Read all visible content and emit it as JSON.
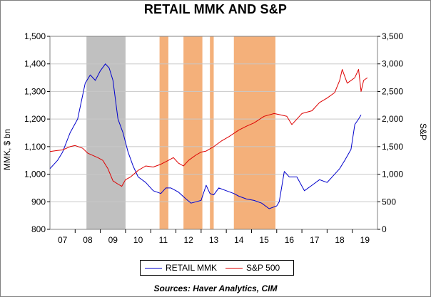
{
  "chart_data": {
    "type": "line",
    "title": "RETAIL MMK AND S&P",
    "ylabel_left": "MMK, $ bn",
    "ylabel_right": "S&P",
    "source": "Sources:  Haver Analytics, CIM",
    "x_ticks": [
      "07",
      "08",
      "09",
      "10",
      "11",
      "12",
      "13",
      "14",
      "15",
      "16",
      "17",
      "18",
      "19"
    ],
    "xlim": [
      2006.5,
      2019.5
    ],
    "ylim_left": [
      800,
      1500
    ],
    "yticks_left": [
      "800",
      "900",
      "1,000",
      "1,100",
      "1,200",
      "1,300",
      "1,400",
      "1,500"
    ],
    "ylim_right": [
      0,
      3500
    ],
    "yticks_right": [
      "0",
      "500",
      "1,000",
      "1,500",
      "2,000",
      "2,500",
      "3,000",
      "3,500"
    ],
    "grid": "horizontal",
    "legend_position": "bottom",
    "colors": {
      "mmk": "#0000cc",
      "sp500": "#dd0000",
      "recession": "#c0c0c0",
      "tightening": "#f4b07a"
    },
    "shaded_periods": [
      {
        "type": "recession",
        "start": 2007.95,
        "end": 2009.5
      },
      {
        "type": "tightening",
        "start": 2010.85,
        "end": 2011.2
      },
      {
        "type": "tightening",
        "start": 2011.8,
        "end": 2012.55
      },
      {
        "type": "tightening",
        "start": 2012.85,
        "end": 2013.0
      },
      {
        "type": "tightening",
        "start": 2013.8,
        "end": 2015.45
      }
    ],
    "series": [
      {
        "name": "RETAIL MMK",
        "axis": "left",
        "x": [
          2006.5,
          2006.8,
          2007.0,
          2007.3,
          2007.6,
          2007.9,
          2008.1,
          2008.3,
          2008.5,
          2008.7,
          2008.85,
          2009.0,
          2009.2,
          2009.4,
          2009.6,
          2009.8,
          2010.0,
          2010.3,
          2010.6,
          2010.9,
          2011.1,
          2011.3,
          2011.6,
          2011.9,
          2012.1,
          2012.3,
          2012.5,
          2012.7,
          2012.85,
          2013.0,
          2013.2,
          2013.5,
          2013.8,
          2014.0,
          2014.3,
          2014.6,
          2014.9,
          2015.2,
          2015.5,
          2015.6,
          2015.8,
          2016.0,
          2016.3,
          2016.6,
          2016.9,
          2017.2,
          2017.5,
          2017.8,
          2018.0,
          2018.2,
          2018.45,
          2018.6,
          2018.75,
          2018.85
        ],
        "values": [
          1020,
          1050,
          1080,
          1150,
          1200,
          1330,
          1360,
          1340,
          1375,
          1400,
          1385,
          1340,
          1200,
          1150,
          1080,
          1030,
          990,
          970,
          940,
          930,
          950,
          950,
          935,
          910,
          895,
          900,
          905,
          960,
          930,
          925,
          950,
          940,
          930,
          920,
          910,
          905,
          895,
          875,
          885,
          900,
          1010,
          990,
          990,
          940,
          960,
          980,
          970,
          1000,
          1020,
          1050,
          1090,
          1180,
          1200,
          1215
        ]
      },
      {
        "name": "S&P 500",
        "axis": "right",
        "x": [
          2006.5,
          2006.8,
          2007.0,
          2007.3,
          2007.5,
          2007.8,
          2008.0,
          2008.2,
          2008.4,
          2008.6,
          2008.8,
          2009.0,
          2009.2,
          2009.35,
          2009.5,
          2009.7,
          2010.0,
          2010.3,
          2010.6,
          2010.9,
          2011.2,
          2011.4,
          2011.6,
          2011.8,
          2012.0,
          2012.3,
          2012.5,
          2012.7,
          2013.0,
          2013.3,
          2013.6,
          2014.0,
          2014.3,
          2014.6,
          2015.0,
          2015.4,
          2015.6,
          2015.9,
          2016.1,
          2016.5,
          2016.9,
          2017.2,
          2017.5,
          2017.8,
          2018.0,
          2018.1,
          2018.3,
          2018.6,
          2018.75,
          2018.85,
          2018.95,
          2019.1
        ],
        "values": [
          1410,
          1430,
          1440,
          1500,
          1520,
          1470,
          1380,
          1340,
          1300,
          1250,
          1100,
          880,
          820,
          780,
          900,
          950,
          1070,
          1150,
          1130,
          1180,
          1250,
          1300,
          1200,
          1150,
          1250,
          1350,
          1400,
          1420,
          1500,
          1600,
          1680,
          1800,
          1870,
          1930,
          2050,
          2100,
          2080,
          2050,
          1900,
          2100,
          2150,
          2300,
          2380,
          2480,
          2700,
          2900,
          2650,
          2750,
          2900,
          2500,
          2700,
          2750
        ]
      }
    ]
  }
}
